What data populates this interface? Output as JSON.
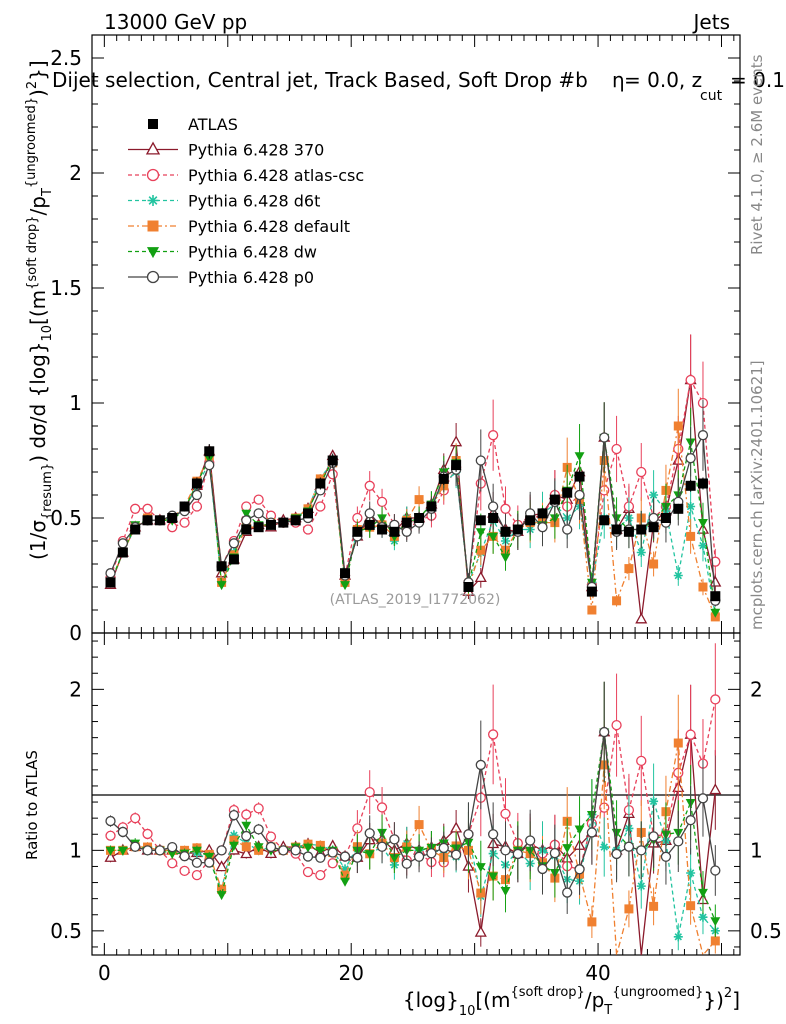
{
  "header": {
    "left": "13000 GeV pp",
    "right": "Jets"
  },
  "title_parts": {
    "main": "Dijet selection, Central jet, Track Based, Soft Drop #b",
    "eq": " = 0.0, z",
    "zsub": "cut",
    "zval": " = 0.1",
    "beta": "η"
  },
  "side_text": {
    "rivet": "Rivet 4.1.0, ≥ 2.6M events",
    "mcplots": "mcplots.cern.ch [arXiv:2401.10621]"
  },
  "watermark": "(ATLAS_2019_I1772062)",
  "ylabel_top": {
    "p1": "(1/σ",
    "s1": "{resum}",
    "p2": ") dσ/d {log}",
    "s2": "10",
    "p3": "[(m",
    "s3": "{soft drop}",
    "p4": "/p",
    "s4": "T",
    "s5": "{ungroomed}",
    "p5": ")",
    "s6": "2",
    "p6": "}]"
  },
  "ylabel_bottom": "Ratio to ATLAS",
  "xlabel": {
    "p1": "{log}",
    "s1": "10",
    "p2": "[(m",
    "s2": "{soft drop}",
    "p3": "/p",
    "s3": "T",
    "s4": "{ungroomed}",
    "p4": "})",
    "s5": "2",
    "p5": "]"
  },
  "legend": [
    {
      "label": "ATLAS",
      "color": "#000000",
      "marker": "square-filled",
      "dash": ""
    },
    {
      "label": "Pythia 6.428 370",
      "color": "#8b1a2b",
      "marker": "triangle-open",
      "dash": ""
    },
    {
      "label": "Pythia 6.428 atlas-csc",
      "color": "#e8405a",
      "marker": "circle-open",
      "dash": "4,3"
    },
    {
      "label": "Pythia 6.428 d6t",
      "color": "#22c4a0",
      "marker": "star",
      "dash": "4,3"
    },
    {
      "label": "Pythia 6.428 default",
      "color": "#f08030",
      "marker": "square-filled",
      "dash": "6,3,2,3"
    },
    {
      "label": "Pythia 6.428 dw",
      "color": "#12a012",
      "marker": "triangle-down-filled",
      "dash": "4,3"
    },
    {
      "label": "Pythia 6.428 p0",
      "color": "#444444",
      "marker": "circle-open",
      "dash": ""
    }
  ],
  "chart_data": {
    "type": "line",
    "x_range": [
      -1,
      51.5
    ],
    "x_ticks": [
      0,
      20,
      40
    ],
    "top_ylim": [
      0,
      2.6
    ],
    "top_yticks": [
      "0",
      "0.5",
      "1",
      "1.5",
      "2",
      "2.5"
    ],
    "bottom_ylim": [
      0.35,
      2.35
    ],
    "bottom_yticks": [
      "0.5",
      "1",
      "2"
    ],
    "x": [
      0.5,
      1.5,
      2.5,
      3.5,
      4.5,
      5.5,
      6.5,
      7.5,
      8.5,
      9.5,
      10.5,
      11.5,
      12.5,
      13.5,
      14.5,
      15.5,
      16.5,
      17.5,
      18.5,
      19.5,
      20.5,
      21.5,
      22.5,
      23.5,
      24.5,
      25.5,
      26.5,
      27.5,
      28.5,
      29.5,
      30.5,
      31.5,
      32.5,
      33.5,
      34.5,
      35.5,
      36.5,
      37.5,
      38.5,
      39.5,
      40.5,
      41.5,
      42.5,
      43.5,
      44.5,
      45.5,
      46.5,
      47.5,
      48.5,
      49.5
    ],
    "reference": "ATLAS",
    "series": [
      {
        "name": "ATLAS",
        "values": [
          0.22,
          0.35,
          0.45,
          0.49,
          0.49,
          0.5,
          0.55,
          0.65,
          0.79,
          0.29,
          0.32,
          0.45,
          0.46,
          0.47,
          0.48,
          0.49,
          0.52,
          0.65,
          0.75,
          0.26,
          0.44,
          0.47,
          0.45,
          0.44,
          0.48,
          0.5,
          0.55,
          0.67,
          0.73,
          0.2,
          0.49,
          0.5,
          0.44,
          0.45,
          0.49,
          0.52,
          0.58,
          0.61,
          0.68,
          0.18,
          0.49,
          0.45,
          0.44,
          0.45,
          0.46,
          0.5,
          0.54,
          0.64,
          0.65,
          0.16
        ]
      },
      {
        "name": "Pythia 6.428 370",
        "values": [
          0.21,
          0.35,
          0.46,
          0.49,
          0.49,
          0.5,
          0.54,
          0.64,
          0.79,
          0.26,
          0.32,
          0.44,
          0.47,
          0.46,
          0.49,
          0.5,
          0.54,
          0.64,
          0.77,
          0.25,
          0.42,
          0.5,
          0.48,
          0.44,
          0.5,
          0.5,
          0.56,
          0.71,
          0.83,
          0.18,
          0.24,
          0.52,
          0.45,
          0.44,
          0.51,
          0.52,
          0.6,
          0.58,
          0.7,
          0.2,
          0.85,
          0.45,
          0.54,
          0.06,
          0.48,
          0.53,
          0.75,
          1.1,
          0.45,
          0.22
        ]
      },
      {
        "name": "Pythia 6.428 atlas-csc",
        "values": [
          0.24,
          0.4,
          0.54,
          0.54,
          0.49,
          0.46,
          0.48,
          0.55,
          0.74,
          0.29,
          0.4,
          0.55,
          0.58,
          0.51,
          0.48,
          0.48,
          0.45,
          0.55,
          0.69,
          0.25,
          0.5,
          0.64,
          0.57,
          0.47,
          0.45,
          0.49,
          0.51,
          0.62,
          0.72,
          0.22,
          0.65,
          0.86,
          0.54,
          0.47,
          0.5,
          0.51,
          0.6,
          0.55,
          0.6,
          0.21,
          0.62,
          0.8,
          0.55,
          0.7,
          0.5,
          0.55,
          0.8,
          1.1,
          1.0,
          0.31
        ]
      },
      {
        "name": "Pythia 6.428 d6t",
        "values": [
          0.22,
          0.35,
          0.46,
          0.49,
          0.49,
          0.5,
          0.54,
          0.64,
          0.74,
          0.22,
          0.35,
          0.47,
          0.46,
          0.48,
          0.48,
          0.5,
          0.54,
          0.67,
          0.75,
          0.23,
          0.45,
          0.46,
          0.46,
          0.4,
          0.5,
          0.5,
          0.56,
          0.65,
          0.7,
          0.22,
          0.35,
          0.49,
          0.4,
          0.45,
          0.45,
          0.52,
          0.56,
          0.5,
          0.55,
          0.22,
          0.5,
          0.45,
          0.5,
          0.35,
          0.6,
          0.53,
          0.25,
          0.55,
          0.38,
          0.08
        ]
      },
      {
        "name": "Pythia 6.428 default",
        "values": [
          0.22,
          0.35,
          0.46,
          0.5,
          0.49,
          0.5,
          0.55,
          0.66,
          0.77,
          0.22,
          0.34,
          0.46,
          0.46,
          0.48,
          0.48,
          0.5,
          0.54,
          0.67,
          0.74,
          0.22,
          0.45,
          0.46,
          0.47,
          0.42,
          0.49,
          0.58,
          0.55,
          0.64,
          0.75,
          0.2,
          0.36,
          0.42,
          0.36,
          0.45,
          0.48,
          0.48,
          0.48,
          0.72,
          0.58,
          0.1,
          0.75,
          0.14,
          0.28,
          0.5,
          0.3,
          0.62,
          0.9,
          0.42,
          0.2,
          0.07
        ]
      },
      {
        "name": "Pythia 6.428 dw",
        "values": [
          0.22,
          0.35,
          0.47,
          0.49,
          0.49,
          0.49,
          0.54,
          0.65,
          0.76,
          0.21,
          0.33,
          0.52,
          0.47,
          0.47,
          0.48,
          0.5,
          0.53,
          0.65,
          0.75,
          0.21,
          0.44,
          0.46,
          0.5,
          0.42,
          0.48,
          0.5,
          0.56,
          0.7,
          0.74,
          0.21,
          0.44,
          0.42,
          0.33,
          0.45,
          0.49,
          0.47,
          0.5,
          0.62,
          0.77,
          0.22,
          0.85,
          0.5,
          0.45,
          0.45,
          0.49,
          0.55,
          0.6,
          0.83,
          0.48,
          0.09
        ]
      },
      {
        "name": "Pythia 6.428 p0",
        "values": [
          0.26,
          0.39,
          0.46,
          0.49,
          0.49,
          0.51,
          0.53,
          0.6,
          0.73,
          0.29,
          0.39,
          0.49,
          0.52,
          0.48,
          0.48,
          0.49,
          0.5,
          0.62,
          0.74,
          0.25,
          0.42,
          0.52,
          0.46,
          0.47,
          0.44,
          0.48,
          0.54,
          0.68,
          0.71,
          0.22,
          0.75,
          0.55,
          0.44,
          0.44,
          0.52,
          0.46,
          0.57,
          0.45,
          0.6,
          0.2,
          0.85,
          0.44,
          0.45,
          0.45,
          0.5,
          0.48,
          0.57,
          0.76,
          0.86,
          0.14
        ]
      }
    ]
  }
}
